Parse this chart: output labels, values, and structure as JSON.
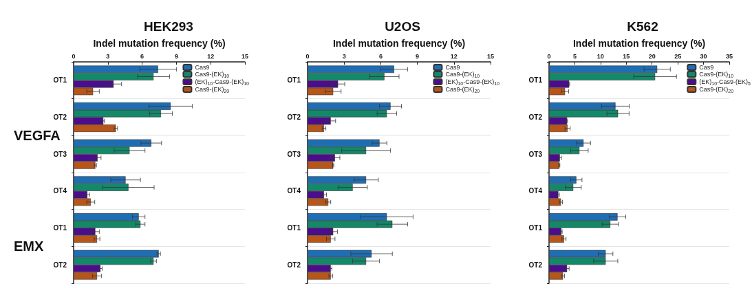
{
  "chart_data": [
    {
      "type": "bar",
      "orientation": "horizontal",
      "title": "HEK293",
      "xlabel": "Indel mutation frequency (%)",
      "categories": [
        "OT1",
        "OT2",
        "OT3",
        "OT4",
        "OT1",
        "OT2"
      ],
      "xlim": [
        0,
        15
      ],
      "xticks": [
        0,
        3,
        6,
        9,
        12,
        15
      ],
      "grid": "y",
      "legend": "top right",
      "annotations": [
        "VEGFA",
        "EMX"
      ],
      "series": [
        {
          "name": "Cas9",
          "color": "#1f6eb4",
          "values": [
            7.4,
            8.5,
            6.8,
            4.55,
            5.7,
            7.45
          ],
          "errors": [
            1.6,
            1.9,
            0.9,
            1.3,
            0.55,
            0.15
          ]
        },
        {
          "name": "Cas9-(EK)$_{10}$",
          "color": "#13896a",
          "values": [
            7.0,
            7.65,
            4.9,
            4.8,
            5.85,
            7.0
          ],
          "errors": [
            1.4,
            1.0,
            1.35,
            2.25,
            0.4,
            0.25
          ]
        },
        {
          "name": "(EK)$_{10}$-Cas9-(EK)$_{10}$",
          "color": "#4b0d8c",
          "values": [
            3.5,
            2.6,
            2.1,
            1.2,
            1.9,
            2.35
          ],
          "errors": [
            0.7,
            0.1,
            0.3,
            0.2,
            0.35,
            0.15
          ]
        },
        {
          "name": "Cas9-(EK)$_{20}$",
          "color": "#b8561a",
          "values": [
            1.7,
            3.7,
            1.9,
            1.5,
            2.05,
            2.05
          ],
          "errors": [
            0.55,
            0.15,
            0.1,
            0.35,
            0.25,
            0.4
          ]
        }
      ]
    },
    {
      "type": "bar",
      "orientation": "horizontal",
      "title": "U2OS",
      "xlabel": "Indel mutation frequency (%)",
      "categories": [
        "OT1",
        "OT2",
        "OT3",
        "OT4",
        "OT1",
        "OT2"
      ],
      "xlim": [
        0,
        15
      ],
      "xticks": [
        0,
        3,
        6,
        9,
        12,
        15
      ],
      "grid": "y",
      "legend": "top right",
      "series": [
        {
          "name": "Cas9",
          "color": "#1f6eb4",
          "values": [
            7.1,
            6.8,
            5.9,
            4.8,
            6.5,
            5.25
          ],
          "errors": [
            1.1,
            0.9,
            0.6,
            1.0,
            2.15,
            1.7
          ]
        },
        {
          "name": "Cas9-(EK)$_{10}$",
          "color": "#13896a",
          "values": [
            6.3,
            6.5,
            4.8,
            3.7,
            6.95,
            4.8
          ],
          "errors": [
            1.2,
            0.8,
            2.0,
            1.2,
            1.25,
            1.1
          ]
        },
        {
          "name": "(EK)$_{10}$-Cas9-(EK)$_{10}$",
          "color": "#4b0d8c",
          "values": [
            2.5,
            1.9,
            2.25,
            1.35,
            2.1,
            1.9
          ],
          "errors": [
            0.55,
            0.4,
            0.4,
            0.2,
            0.35,
            0.1
          ]
        },
        {
          "name": "Cas9-(EK)$_{20}$",
          "color": "#b8561a",
          "values": [
            2.1,
            1.35,
            2.1,
            1.7,
            1.9,
            1.9
          ],
          "errors": [
            0.65,
            0.15,
            0.05,
            0.2,
            0.35,
            0.15
          ]
        }
      ]
    },
    {
      "type": "bar",
      "orientation": "horizontal",
      "title": "K562",
      "xlabel": "Indel mutation frequency (%)",
      "categories": [
        "OT1",
        "OT2",
        "OT3",
        "OT4",
        "OT1",
        "OT2"
      ],
      "xlim": [
        0,
        35
      ],
      "xticks": [
        0,
        5,
        10,
        15,
        20,
        25,
        30,
        35
      ],
      "grid": "y",
      "legend": "top right",
      "series": [
        {
          "name": "Cas9",
          "color": "#1f6eb4",
          "values": [
            21,
            12.9,
            6.7,
            5.3,
            13.3,
            11
          ],
          "errors": [
            2.55,
            2.7,
            1.35,
            1.1,
            1.6,
            1.4
          ]
        },
        {
          "name": "Cas9-(EK)$_{10}$",
          "color": "#13896a",
          "values": [
            20.6,
            13.4,
            5.9,
            4.7,
            11.9,
            11
          ],
          "errors": [
            4.15,
            2.15,
            1.7,
            1.55,
            1.6,
            2.35
          ]
        },
        {
          "name": "(EK)$_{10}$-Cas9-(EK)$_{5}$",
          "color": "#4b0d8c",
          "values": [
            3.9,
            3.5,
            2.1,
            1.8,
            2.4,
            3.5
          ],
          "errors": [
            0.1,
            0.1,
            0.3,
            0.2,
            0.15,
            0.4
          ]
        },
        {
          "name": "Cas9-(EK)$_{20}$",
          "color": "#b8561a",
          "values": [
            3.1,
            3.6,
            2.0,
            2.3,
            2.9,
            2.7
          ],
          "errors": [
            0.7,
            0.5,
            0.1,
            0.3,
            0.4,
            0.3
          ]
        }
      ]
    }
  ]
}
